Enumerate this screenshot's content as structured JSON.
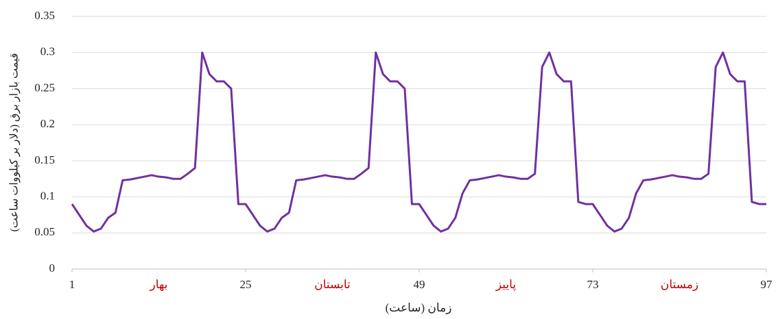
{
  "chart_data": {
    "type": "line",
    "x_label": "زمان (ساعت)",
    "y_label": "قیمت بازار برق (دلار بر کیلووات ساعت)",
    "x": [
      1,
      2,
      3,
      4,
      5,
      6,
      7,
      8,
      9,
      10,
      11,
      12,
      13,
      14,
      15,
      16,
      17,
      18,
      19,
      20,
      21,
      22,
      23,
      24,
      25,
      26,
      27,
      28,
      29,
      30,
      31,
      32,
      33,
      34,
      35,
      36,
      37,
      38,
      39,
      40,
      41,
      42,
      43,
      44,
      45,
      46,
      47,
      48,
      49,
      50,
      51,
      52,
      53,
      54,
      55,
      56,
      57,
      58,
      59,
      60,
      61,
      62,
      63,
      64,
      65,
      66,
      67,
      68,
      69,
      70,
      71,
      72,
      73,
      74,
      75,
      76,
      77,
      78,
      79,
      80,
      81,
      82,
      83,
      84,
      85,
      86,
      87,
      88,
      89,
      90,
      91,
      92,
      93,
      94,
      95,
      96,
      97
    ],
    "series": [
      {
        "name": "قیمت",
        "color": "#7030a0",
        "values": [
          0.09,
          0.075,
          0.06,
          0.052,
          0.056,
          0.071,
          0.078,
          0.123,
          0.124,
          0.126,
          0.128,
          0.13,
          0.128,
          0.127,
          0.125,
          0.125,
          0.132,
          0.14,
          0.3,
          0.27,
          0.26,
          0.26,
          0.25,
          0.09,
          0.09,
          0.075,
          0.06,
          0.052,
          0.056,
          0.071,
          0.078,
          0.123,
          0.124,
          0.126,
          0.128,
          0.13,
          0.128,
          0.127,
          0.125,
          0.125,
          0.132,
          0.14,
          0.3,
          0.27,
          0.26,
          0.26,
          0.25,
          0.09,
          0.09,
          0.075,
          0.06,
          0.052,
          0.056,
          0.071,
          0.105,
          0.123,
          0.124,
          0.126,
          0.128,
          0.13,
          0.128,
          0.127,
          0.125,
          0.125,
          0.132,
          0.28,
          0.3,
          0.27,
          0.26,
          0.26,
          0.093,
          0.09,
          0.09,
          0.075,
          0.06,
          0.052,
          0.056,
          0.071,
          0.105,
          0.123,
          0.124,
          0.126,
          0.128,
          0.13,
          0.128,
          0.127,
          0.125,
          0.125,
          0.132,
          0.28,
          0.3,
          0.27,
          0.26,
          0.26,
          0.093,
          0.09,
          0.09
        ]
      }
    ],
    "annotations": [
      "بهار",
      "تابستان",
      "پاییز",
      "زمستان"
    ],
    "annotation_color": "#c00000",
    "xlim": [
      1,
      97
    ],
    "xticks": [
      1,
      25,
      49,
      73,
      97
    ],
    "ylim": [
      0,
      0.35
    ],
    "yticks": [
      0,
      0.05,
      0.1,
      0.15,
      0.2,
      0.25,
      0.3,
      0.35
    ],
    "grid": true
  }
}
